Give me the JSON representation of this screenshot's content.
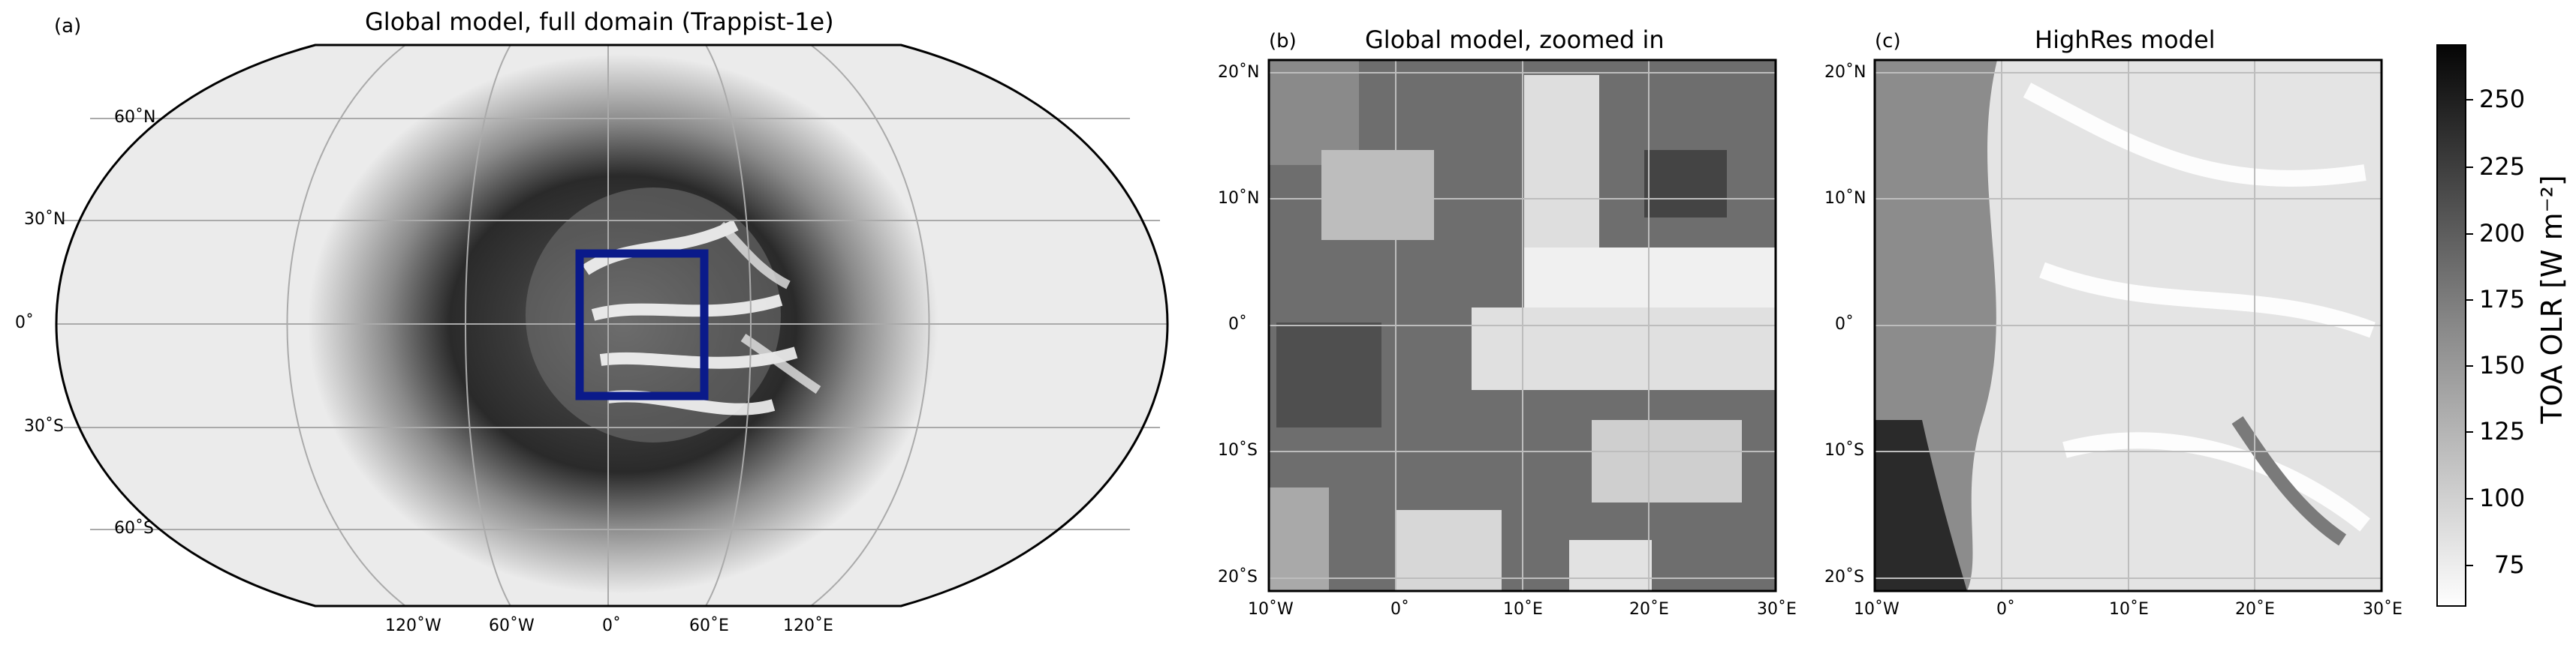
{
  "panel_a": {
    "letter": "(a)",
    "title": "Global model, full domain (Trappist-1e)",
    "lat_ticks": [
      "60˚N",
      "30˚N",
      "0˚",
      "30˚S",
      "60˚S"
    ],
    "lon_ticks": [
      "120˚W",
      "60˚W",
      "0˚",
      "60˚E",
      "120˚E"
    ],
    "zoom_box_color": "#0a1a8a"
  },
  "panel_b": {
    "letter": "(b)",
    "title": "Global model, zoomed in",
    "lat_ticks": [
      "20˚N",
      "10˚N",
      "0˚",
      "10˚S",
      "20˚S"
    ],
    "lon_ticks": [
      "10˚W",
      "0˚",
      "10˚E",
      "20˚E",
      "30˚E"
    ]
  },
  "panel_c": {
    "letter": "(c)",
    "title": "HighRes model",
    "lat_ticks": [
      "20˚N",
      "10˚N",
      "0˚",
      "10˚S",
      "20˚S"
    ],
    "lon_ticks": [
      "10˚W",
      "0˚",
      "10˚E",
      "20˚E",
      "30˚E"
    ]
  },
  "colorbar": {
    "label": "TOA OLR [W m⁻²]",
    "ticks": [
      "250",
      "225",
      "200",
      "175",
      "150",
      "125",
      "100",
      "75"
    ],
    "colormap": "Greys"
  }
}
